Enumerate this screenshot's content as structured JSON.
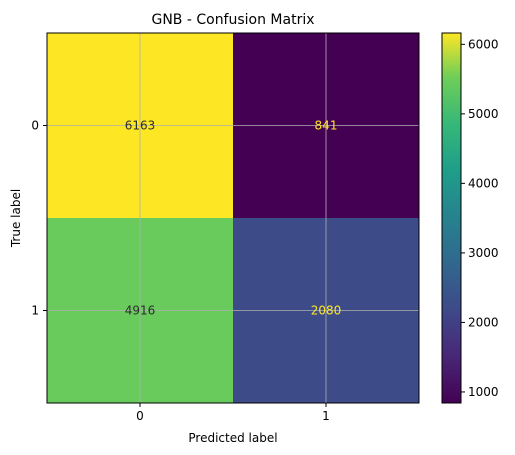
{
  "chart_data": {
    "type": "heatmap",
    "title": "GNB - Confusion Matrix",
    "xlabel": "Predicted label",
    "ylabel": "True label",
    "x_categories": [
      "0",
      "1"
    ],
    "y_categories": [
      "0",
      "1"
    ],
    "values": [
      [
        6163,
        841
      ],
      [
        4916,
        2080
      ]
    ],
    "value_labels": [
      [
        "6163",
        "841"
      ],
      [
        "4916",
        "2080"
      ]
    ],
    "colormap": "viridis",
    "color_range": [
      841,
      6163
    ],
    "colorbar": {
      "ticks": [
        1000,
        2000,
        3000,
        4000,
        5000,
        6000
      ],
      "tick_labels": [
        "1000",
        "2000",
        "3000",
        "4000",
        "5000",
        "6000"
      ]
    },
    "grid": true,
    "text_colors": {
      "light_cell": "#2d2d2d",
      "dark_cell": "#fde725"
    }
  }
}
